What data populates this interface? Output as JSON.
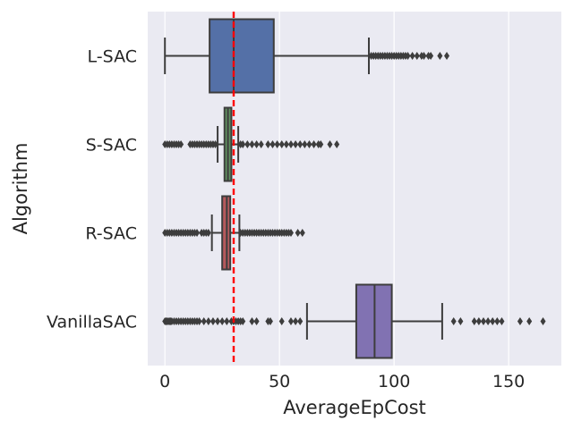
{
  "chart_data": {
    "type": "boxplot",
    "orientation": "horizontal",
    "xlabel": "AverageEpCost",
    "ylabel": "Algorithm",
    "xlim": [
      -7.5,
      173
    ],
    "xticks": [
      0,
      50,
      100,
      150
    ],
    "grid": true,
    "reference_line": {
      "x": 30,
      "style": "dashed",
      "color": "#ff0000"
    },
    "colors": {
      "background": "#eaeaf2",
      "grid": "#ffffff",
      "outline": "#3d3d3d",
      "outlier": "#3d3d3d"
    },
    "series": [
      {
        "name": "L-SAC",
        "color": "#5470a7",
        "whisker_low": 0,
        "q1": 19.5,
        "median": 30,
        "q3": 47.5,
        "whisker_high": 89,
        "outliers": [
          90,
          91,
          92,
          93,
          94,
          95,
          96,
          97,
          98,
          99,
          100,
          101,
          102,
          103,
          104,
          105,
          106,
          108,
          110,
          112,
          113,
          115,
          116,
          120,
          123
        ]
      },
      {
        "name": "S-SAC",
        "color": "#5f8f5f",
        "whisker_low": 23,
        "q1": 26,
        "median": 27.5,
        "q3": 29,
        "whisker_high": 32,
        "outliers": [
          0,
          1,
          2,
          3,
          4,
          5,
          6,
          7,
          11,
          12,
          13,
          14,
          15,
          16,
          17,
          18,
          19,
          20,
          21,
          22,
          33,
          34,
          36,
          38,
          40,
          42,
          45,
          47,
          49,
          51,
          53,
          55,
          57,
          59,
          61,
          63,
          65,
          67,
          68,
          72,
          75
        ]
      },
      {
        "name": "R-SAC",
        "color": "#b55a5d",
        "whisker_low": 20.5,
        "q1": 25,
        "median": 27,
        "q3": 28.5,
        "whisker_high": 32.5,
        "outliers": [
          0,
          1,
          2,
          3,
          4,
          5,
          6,
          7,
          8,
          9,
          10,
          11,
          12,
          13,
          14,
          16,
          17,
          18,
          19,
          33,
          34,
          35,
          36,
          37,
          38,
          39,
          40,
          41,
          42,
          43,
          44,
          45,
          46,
          47,
          48,
          49,
          50,
          51,
          52,
          53,
          54,
          55,
          58,
          60
        ]
      },
      {
        "name": "VanillaSAC",
        "color": "#8172b2",
        "whisker_low": 62,
        "q1": 83.5,
        "median": 91.5,
        "q3": 99,
        "whisker_high": 121,
        "outliers": [
          0,
          0.5,
          1,
          1.5,
          2,
          2.5,
          3,
          4,
          5,
          6,
          7,
          8,
          9,
          10,
          11,
          12,
          13,
          14,
          15,
          17,
          19,
          21,
          23,
          25,
          27,
          29,
          30,
          31,
          32,
          33,
          34,
          38,
          40,
          45,
          46,
          51,
          55,
          57,
          59,
          126,
          129,
          135,
          137,
          139,
          141,
          143,
          145,
          147,
          155,
          159,
          165
        ]
      }
    ]
  }
}
